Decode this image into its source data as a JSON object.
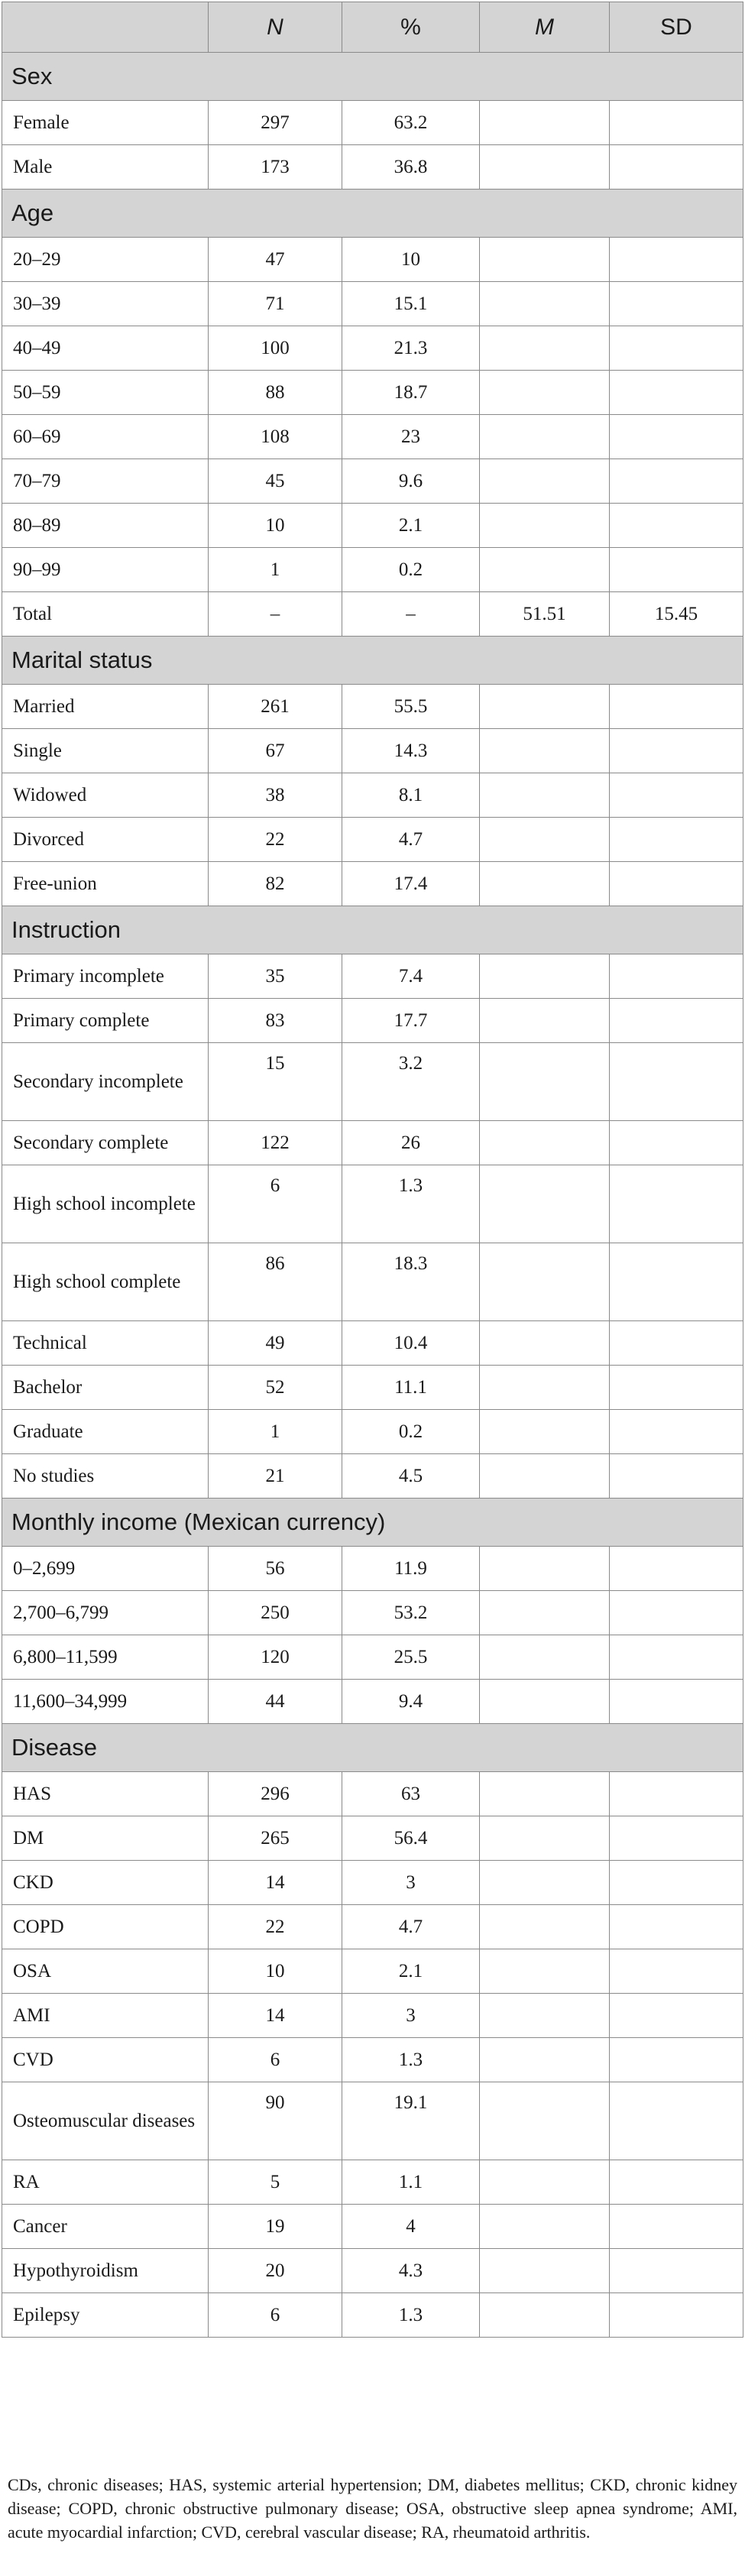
{
  "table": {
    "header": {
      "blank": "",
      "n": "N",
      "pct": "%",
      "m": "M",
      "sd": "SD"
    },
    "sections": [
      {
        "title": "Sex",
        "rows": [
          {
            "label": "Female",
            "n": "297",
            "pct": "63.2",
            "m": "",
            "sd": ""
          },
          {
            "label": "Male",
            "n": "173",
            "pct": "36.8",
            "m": "",
            "sd": ""
          }
        ]
      },
      {
        "title": "Age",
        "rows": [
          {
            "label": "20–29",
            "n": "47",
            "pct": "10",
            "m": "",
            "sd": ""
          },
          {
            "label": "30–39",
            "n": "71",
            "pct": "15.1",
            "m": "",
            "sd": ""
          },
          {
            "label": "40–49",
            "n": "100",
            "pct": "21.3",
            "m": "",
            "sd": ""
          },
          {
            "label": "50–59",
            "n": "88",
            "pct": "18.7",
            "m": "",
            "sd": ""
          },
          {
            "label": "60–69",
            "n": "108",
            "pct": "23",
            "m": "",
            "sd": ""
          },
          {
            "label": "70–79",
            "n": "45",
            "pct": "9.6",
            "m": "",
            "sd": ""
          },
          {
            "label": "80–89",
            "n": "10",
            "pct": "2.1",
            "m": "",
            "sd": ""
          },
          {
            "label": "90–99",
            "n": "1",
            "pct": "0.2",
            "m": "",
            "sd": ""
          },
          {
            "label": "Total",
            "n": "–",
            "pct": "–",
            "m": "51.51",
            "sd": "15.45"
          }
        ]
      },
      {
        "title": "Marital status",
        "rows": [
          {
            "label": "Married",
            "n": "261",
            "pct": "55.5",
            "m": "",
            "sd": ""
          },
          {
            "label": "Single",
            "n": "67",
            "pct": "14.3",
            "m": "",
            "sd": ""
          },
          {
            "label": "Widowed",
            "n": "38",
            "pct": "8.1",
            "m": "",
            "sd": ""
          },
          {
            "label": "Divorced",
            "n": "22",
            "pct": "4.7",
            "m": "",
            "sd": ""
          },
          {
            "label": "Free-union",
            "n": "82",
            "pct": "17.4",
            "m": "",
            "sd": ""
          }
        ]
      },
      {
        "title": "Instruction",
        "rows": [
          {
            "label": "Primary incomplete",
            "n": "35",
            "pct": "7.4",
            "m": "",
            "sd": ""
          },
          {
            "label": "Primary complete",
            "n": "83",
            "pct": "17.7",
            "m": "",
            "sd": ""
          },
          {
            "label": "Secondary incomplete",
            "n": "15",
            "pct": "3.2",
            "m": "",
            "sd": "",
            "tall": true
          },
          {
            "label": "Secondary complete",
            "n": "122",
            "pct": "26",
            "m": "",
            "sd": ""
          },
          {
            "label": "High school incomplete",
            "n": "6",
            "pct": "1.3",
            "m": "",
            "sd": "",
            "tall": true
          },
          {
            "label": "High school complete",
            "n": "86",
            "pct": "18.3",
            "m": "",
            "sd": "",
            "tall": true
          },
          {
            "label": "Technical",
            "n": "49",
            "pct": "10.4",
            "m": "",
            "sd": ""
          },
          {
            "label": "Bachelor",
            "n": "52",
            "pct": "11.1",
            "m": "",
            "sd": ""
          },
          {
            "label": "Graduate",
            "n": "1",
            "pct": "0.2",
            "m": "",
            "sd": ""
          },
          {
            "label": "No studies",
            "n": "21",
            "pct": "4.5",
            "m": "",
            "sd": ""
          }
        ]
      },
      {
        "title": "Monthly income (Mexican currency)",
        "rows": [
          {
            "label": "0–2,699",
            "n": "56",
            "pct": "11.9",
            "m": "",
            "sd": ""
          },
          {
            "label": "2,700–6,799",
            "n": "250",
            "pct": "53.2",
            "m": "",
            "sd": ""
          },
          {
            "label": "6,800–11,599",
            "n": "120",
            "pct": "25.5",
            "m": "",
            "sd": ""
          },
          {
            "label": "11,600–34,999",
            "n": "44",
            "pct": "9.4",
            "m": "",
            "sd": ""
          }
        ]
      },
      {
        "title": "Disease",
        "rows": [
          {
            "label": "HAS",
            "n": "296",
            "pct": "63",
            "m": "",
            "sd": ""
          },
          {
            "label": "DM",
            "n": "265",
            "pct": "56.4",
            "m": "",
            "sd": ""
          },
          {
            "label": "CKD",
            "n": "14",
            "pct": "3",
            "m": "",
            "sd": ""
          },
          {
            "label": "COPD",
            "n": "22",
            "pct": "4.7",
            "m": "",
            "sd": ""
          },
          {
            "label": "OSA",
            "n": "10",
            "pct": "2.1",
            "m": "",
            "sd": ""
          },
          {
            "label": "AMI",
            "n": "14",
            "pct": "3",
            "m": "",
            "sd": ""
          },
          {
            "label": "CVD",
            "n": "6",
            "pct": "1.3",
            "m": "",
            "sd": ""
          },
          {
            "label": "Osteomuscular diseases",
            "n": "90",
            "pct": "19.1",
            "m": "",
            "sd": "",
            "tall": true
          },
          {
            "label": "RA",
            "n": "5",
            "pct": "1.1",
            "m": "",
            "sd": ""
          },
          {
            "label": "Cancer",
            "n": "19",
            "pct": "4",
            "m": "",
            "sd": ""
          },
          {
            "label": "Hypothyroidism",
            "n": "20",
            "pct": "4.3",
            "m": "",
            "sd": ""
          },
          {
            "label": "Epilepsy",
            "n": "6",
            "pct": "1.3",
            "m": "",
            "sd": ""
          }
        ]
      }
    ]
  },
  "footnote": "CDs, chronic diseases; HAS, systemic arterial hypertension; DM, diabetes mellitus; CKD, chronic kidney disease; COPD, chronic obstructive pulmonary disease; OSA, obstructive sleep apnea syndrome; AMI, acute myocardial infarction; CVD, cerebral vascular disease; RA, rheumatoid arthritis."
}
